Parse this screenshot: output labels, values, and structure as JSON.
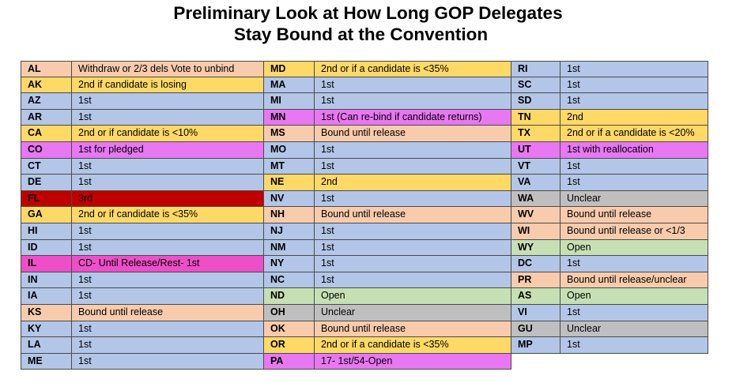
{
  "title": {
    "line1": "Preliminary Look at How Long GOP Delegates",
    "line2": "Stay Bound at the Convention"
  },
  "colors": {
    "blue": "#b3c6e7",
    "yellow": "#ffd966",
    "salmon": "#f8cbad",
    "violet": "#e877f2",
    "magenta": "#ee4fc9",
    "red": "#c00000",
    "green": "#c6e0b4",
    "gray": "#bfbfbf"
  },
  "columns": [
    [
      {
        "code": "AL",
        "desc": "Withdraw or 2/3 dels Vote to unbind",
        "color": "salmon"
      },
      {
        "code": "AK",
        "desc": "2nd if candidate is losing",
        "color": "yellow"
      },
      {
        "code": "AZ",
        "desc": "1st",
        "color": "blue"
      },
      {
        "code": "AR",
        "desc": "1st",
        "color": "blue"
      },
      {
        "code": "CA",
        "desc": "2nd or if candidate is <10%",
        "color": "yellow"
      },
      {
        "code": "CO",
        "desc": "1st for pledged",
        "color": "violet"
      },
      {
        "code": "CT",
        "desc": "1st",
        "color": "blue"
      },
      {
        "code": "DE",
        "desc": "1st",
        "color": "blue"
      },
      {
        "code": "FL",
        "desc": "3rd",
        "color": "red"
      },
      {
        "code": "GA",
        "desc": "2nd or if candidate is <35%",
        "color": "yellow"
      },
      {
        "code": "HI",
        "desc": "1st",
        "color": "blue"
      },
      {
        "code": "ID",
        "desc": "1st",
        "color": "blue"
      },
      {
        "code": "IL",
        "desc": "CD- Until Release/Rest- 1st",
        "color": "magenta"
      },
      {
        "code": "IN",
        "desc": "1st",
        "color": "blue"
      },
      {
        "code": "IA",
        "desc": "1st",
        "color": "blue"
      },
      {
        "code": "KS",
        "desc": "Bound until release",
        "color": "salmon"
      },
      {
        "code": "KY",
        "desc": "1st",
        "color": "blue"
      },
      {
        "code": "LA",
        "desc": "1st",
        "color": "blue"
      },
      {
        "code": "ME",
        "desc": "1st",
        "color": "blue"
      }
    ],
    [
      {
        "code": "MD",
        "desc": "2nd or if a candidate is <35%",
        "color": "yellow"
      },
      {
        "code": "MA",
        "desc": "1st",
        "color": "blue"
      },
      {
        "code": "MI",
        "desc": "1st",
        "color": "blue"
      },
      {
        "code": "MN",
        "desc": "1st (Can re-bind if candidate returns)",
        "color": "violet"
      },
      {
        "code": "MS",
        "desc": "Bound until release",
        "color": "salmon"
      },
      {
        "code": "MO",
        "desc": "1st",
        "color": "blue"
      },
      {
        "code": "MT",
        "desc": "1st",
        "color": "blue"
      },
      {
        "code": "NE",
        "desc": "2nd",
        "color": "yellow"
      },
      {
        "code": "NV",
        "desc": "1st",
        "color": "blue"
      },
      {
        "code": "NH",
        "desc": "Bound until release",
        "color": "salmon"
      },
      {
        "code": "NJ",
        "desc": "1st",
        "color": "blue"
      },
      {
        "code": "NM",
        "desc": "1st",
        "color": "blue"
      },
      {
        "code": "NY",
        "desc": "1st",
        "color": "blue"
      },
      {
        "code": "NC",
        "desc": "1st",
        "color": "blue"
      },
      {
        "code": "ND",
        "desc": "Open",
        "color": "green"
      },
      {
        "code": "OH",
        "desc": "Unclear",
        "color": "gray"
      },
      {
        "code": "OK",
        "desc": "Bound until release",
        "color": "salmon"
      },
      {
        "code": "OR",
        "desc": "2nd or if a candidate is <35%",
        "color": "yellow"
      },
      {
        "code": "PA",
        "desc": "17- 1st/54-Open",
        "color": "violet"
      }
    ],
    [
      {
        "code": "RI",
        "desc": "1st",
        "color": "blue"
      },
      {
        "code": "SC",
        "desc": "1st",
        "color": "blue"
      },
      {
        "code": "SD",
        "desc": "1st",
        "color": "blue"
      },
      {
        "code": "TN",
        "desc": "2nd",
        "color": "yellow"
      },
      {
        "code": "TX",
        "desc": "2nd or if a candidate is <20%",
        "color": "yellow"
      },
      {
        "code": "UT",
        "desc": "1st with reallocation",
        "color": "violet"
      },
      {
        "code": "VT",
        "desc": "1st",
        "color": "blue"
      },
      {
        "code": "VA",
        "desc": "1st",
        "color": "blue"
      },
      {
        "code": "WA",
        "desc": "Unclear",
        "color": "gray"
      },
      {
        "code": "WV",
        "desc": "Bound until release",
        "color": "salmon"
      },
      {
        "code": "WI",
        "desc": "Bound until release or <1/3",
        "color": "salmon"
      },
      {
        "code": "WY",
        "desc": "Open",
        "color": "green"
      },
      {
        "code": "DC",
        "desc": "1st",
        "color": "blue"
      },
      {
        "code": "PR",
        "desc": "Bound until release/unclear",
        "color": "salmon"
      },
      {
        "code": "AS",
        "desc": "Open",
        "color": "green"
      },
      {
        "code": "VI",
        "desc": "1st",
        "color": "blue"
      },
      {
        "code": "GU",
        "desc": "Unclear",
        "color": "gray"
      },
      {
        "code": "MP",
        "desc": "1st",
        "color": "blue"
      }
    ]
  ]
}
